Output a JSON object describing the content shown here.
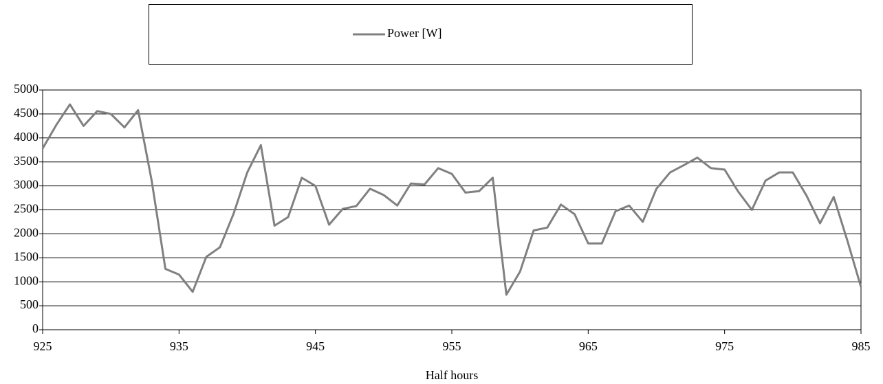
{
  "chart_data": {
    "type": "line",
    "x_label": "Half hours",
    "x": [
      925,
      926,
      927,
      928,
      929,
      930,
      931,
      932,
      933,
      934,
      935,
      936,
      937,
      938,
      939,
      940,
      941,
      942,
      943,
      944,
      945,
      946,
      947,
      948,
      949,
      950,
      951,
      952,
      953,
      954,
      955,
      956,
      957,
      958,
      959,
      960,
      961,
      962,
      963,
      964,
      965,
      966,
      967,
      968,
      969,
      970,
      971,
      972,
      973,
      974,
      975,
      976,
      977,
      978,
      979,
      980,
      981,
      982,
      983,
      984,
      985
    ],
    "series": [
      {
        "name": "Power [W]",
        "color": "#808080",
        "values": [
          3780,
          4270,
          4700,
          4250,
          4560,
          4500,
          4220,
          4580,
          3100,
          1270,
          1150,
          790,
          1520,
          1720,
          2420,
          3280,
          3850,
          2170,
          2350,
          3170,
          3000,
          2190,
          2520,
          2580,
          2940,
          2810,
          2590,
          3050,
          3030,
          3370,
          3250,
          2860,
          2890,
          3170,
          730,
          1210,
          2070,
          2130,
          2610,
          2410,
          1800,
          1800,
          2470,
          2590,
          2250,
          2940,
          3280,
          3430,
          3590,
          3370,
          3340,
          2880,
          2500,
          3110,
          3280,
          3280,
          2800,
          2220,
          2770,
          1860,
          890
        ]
      }
    ],
    "xlim": [
      925,
      985
    ],
    "xticks": [
      925,
      935,
      945,
      955,
      965,
      975,
      985
    ],
    "ylim": [
      0,
      5000
    ],
    "yticks": [
      0,
      500,
      1000,
      1500,
      2000,
      2500,
      3000,
      3500,
      4000,
      4500,
      5000
    ],
    "grid": true
  }
}
